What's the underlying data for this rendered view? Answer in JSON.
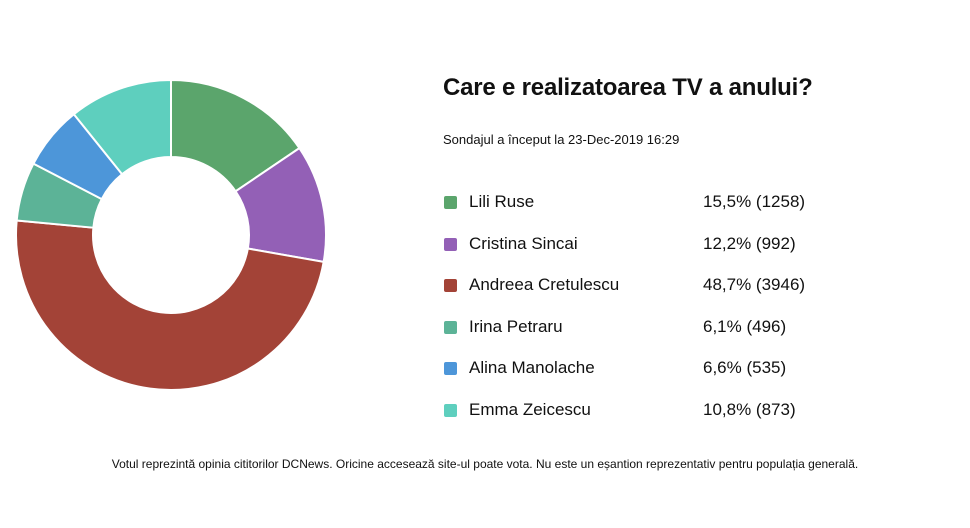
{
  "chart_data": {
    "type": "pie",
    "donut": true,
    "title": "Care e realizatoarea TV a anului?",
    "subtitle": "Sondajul a început la 23-Dec-2019 16:29",
    "legend_position": "right",
    "series": [
      {
        "name": "Lili Ruse",
        "percent": 15.5,
        "votes": 1258,
        "label": "15,5% (1258)",
        "color": "#5ba56c"
      },
      {
        "name": "Cristina Sincai",
        "percent": 12.2,
        "votes": 992,
        "label": "12,2% (992)",
        "color": "#9360b6"
      },
      {
        "name": "Andreea Cretulescu",
        "percent": 48.7,
        "votes": 3946,
        "label": "48,7% (3946)",
        "color": "#a34337"
      },
      {
        "name": "Irina Petraru",
        "percent": 6.1,
        "votes": 496,
        "label": "6,1% (496)",
        "color": "#5cb397"
      },
      {
        "name": "Alina Manolache",
        "percent": 6.6,
        "votes": 535,
        "label": "6,6% (535)",
        "color": "#4d96d9"
      },
      {
        "name": "Emma Zeicescu",
        "percent": 10.8,
        "votes": 873,
        "label": "10,8% (873)",
        "color": "#5ecfbe"
      }
    ]
  },
  "footer": "Votul reprezintă opinia cititorilor DCNews. Oricine accesează site-ul poate vota. Nu este un eșantion reprezentativ pentru populația generală."
}
